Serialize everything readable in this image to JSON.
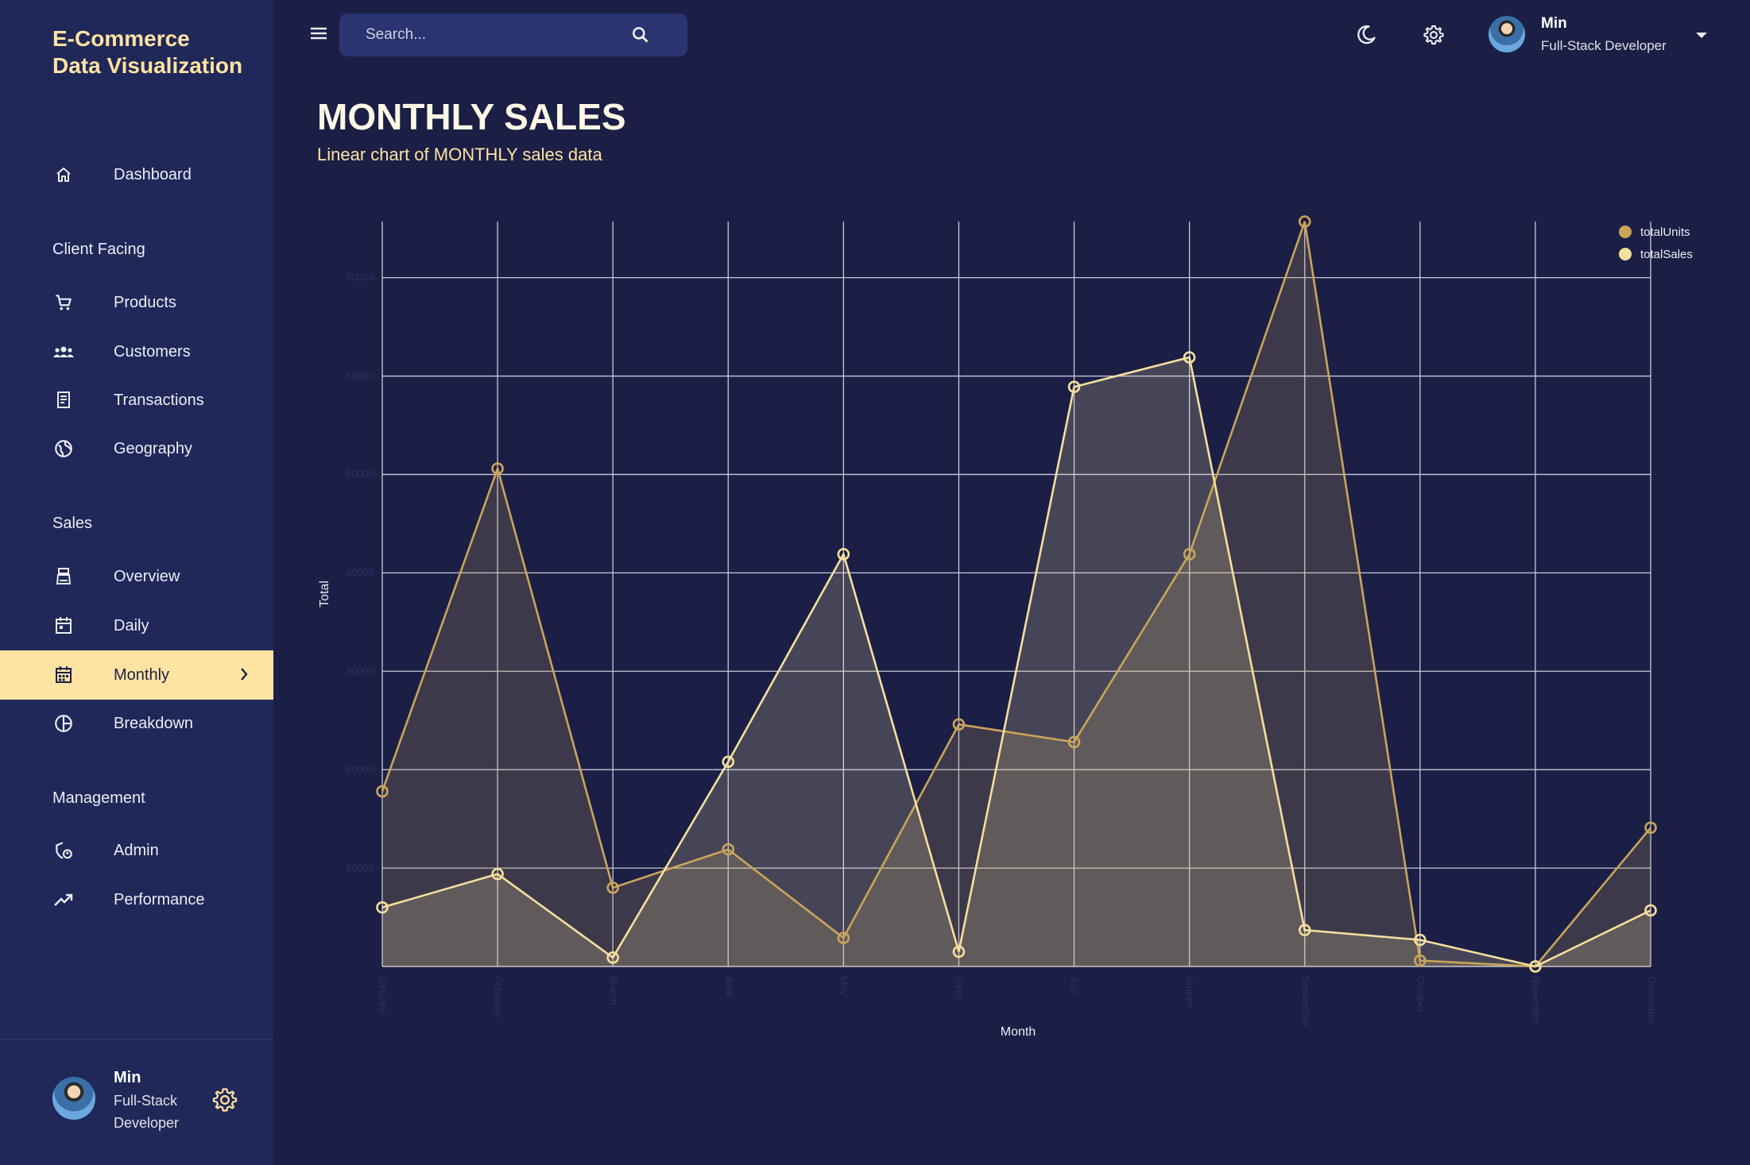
{
  "brand": {
    "title": "E-Commerce Data Visualization"
  },
  "nav": {
    "dashboard": "Dashboard",
    "client_facing": "Client Facing",
    "products": "Products",
    "customers": "Customers",
    "transactions": "Transactions",
    "geography": "Geography",
    "sales": "Sales",
    "overview": "Overview",
    "daily": "Daily",
    "monthly": "Monthly",
    "breakdown": "Breakdown",
    "management": "Management",
    "admin": "Admin",
    "performance": "Performance"
  },
  "user": {
    "name": "Min",
    "role": "Full-Stack Developer"
  },
  "search": {
    "placeholder": "Search..."
  },
  "header": {
    "title": "MONTHLY SALES",
    "subtitle": "Linear chart of MONTHLY sales data"
  },
  "colors": {
    "accent": "#ffe3a3",
    "background": "#1b1f46",
    "sidebar": "#202859",
    "units_line": "#c9a55a",
    "sales_line": "#f5df9e"
  },
  "chart_data": {
    "type": "area",
    "title": "",
    "xlabel": "Month",
    "ylabel": "Total",
    "categories": [
      "January",
      "February",
      "March",
      "April",
      "May",
      "June",
      "July",
      "August",
      "September",
      "October",
      "November",
      "December"
    ],
    "yticks": [
      10000,
      20000,
      30000,
      40000,
      50000,
      60000,
      70000
    ],
    "ylim": [
      0,
      75700
    ],
    "legend_position": "top-right",
    "series": [
      {
        "name": "totalUnits",
        "values": [
          17800,
          50600,
          8000,
          11900,
          2900,
          24600,
          22800,
          41900,
          75700,
          600,
          0,
          14100
        ]
      },
      {
        "name": "totalSales",
        "values": [
          6000,
          9400,
          900,
          20800,
          41900,
          1500,
          58900,
          61900,
          3700,
          2700,
          0,
          5700
        ]
      }
    ]
  }
}
